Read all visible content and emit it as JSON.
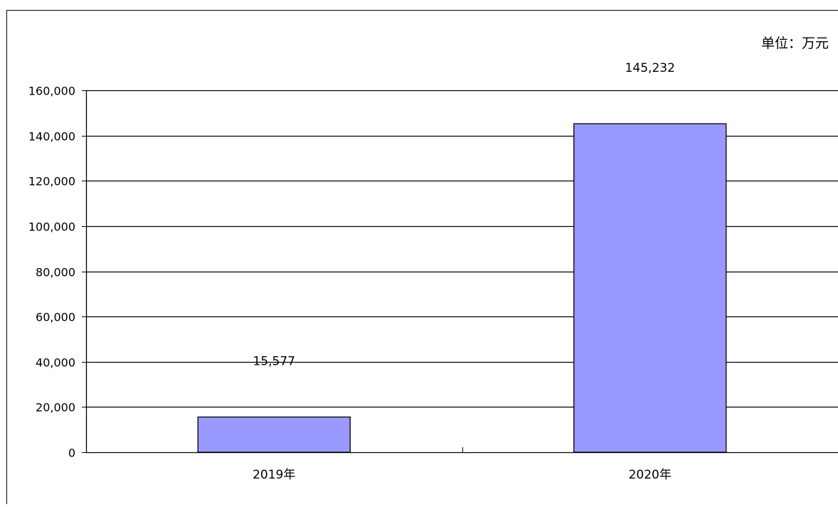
{
  "unit_label": "单位：万元",
  "chart_data": {
    "type": "bar",
    "categories": [
      "2019年",
      "2020年"
    ],
    "values": [
      15577,
      145232
    ],
    "value_labels": [
      "15,577",
      "145,232"
    ],
    "ylim": [
      0,
      160000
    ],
    "y_ticks": [
      0,
      20000,
      40000,
      60000,
      80000,
      100000,
      120000,
      140000,
      160000
    ],
    "y_tick_labels": [
      "0",
      "20,000",
      "40,000",
      "60,000",
      "80,000",
      "100,000",
      "120,000",
      "140,000",
      "160,000"
    ],
    "grid": true,
    "legend": "none",
    "bar_color": "#9999ff",
    "bar_stroke": "#000000",
    "title": "",
    "xlabel": "",
    "ylabel": ""
  }
}
